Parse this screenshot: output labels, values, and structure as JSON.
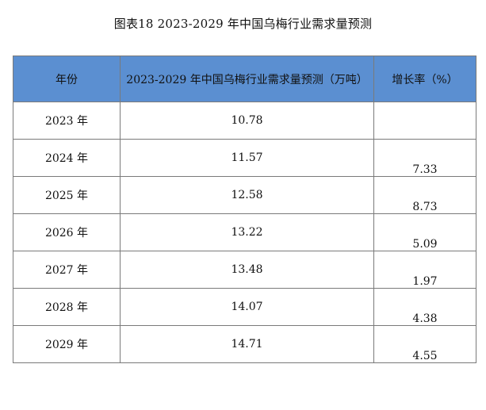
{
  "caption": "图表18  2023-2029 年中国乌梅行业需求量预测",
  "table": {
    "headers": [
      "年份",
      "2023-2029 年中国乌梅行业需求量预测（万吨）",
      "增长率（%）"
    ],
    "rows": [
      {
        "year": "2023 年",
        "value": "10.78",
        "growth": ""
      },
      {
        "year": "2024 年",
        "value": "11.57",
        "growth": "7.33"
      },
      {
        "year": "2025 年",
        "value": "12.58",
        "growth": "8.73"
      },
      {
        "year": "2026 年",
        "value": "13.22",
        "growth": "5.09"
      },
      {
        "year": "2027 年",
        "value": "13.48",
        "growth": "1.97"
      },
      {
        "year": "2028 年",
        "value": "14.07",
        "growth": "4.38"
      },
      {
        "year": "2029 年",
        "value": "14.71",
        "growth": "4.55"
      }
    ]
  },
  "colors": {
    "header_background": "#5b8fd1",
    "border": "#7a7a7a"
  }
}
